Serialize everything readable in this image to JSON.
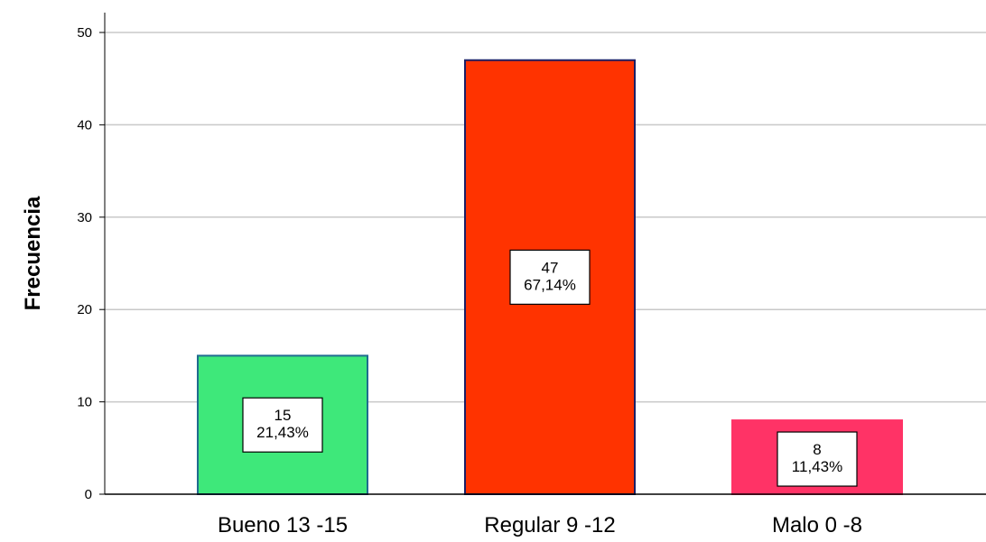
{
  "chart_data": {
    "type": "bar",
    "title": "",
    "xlabel": "",
    "ylabel": "Frecuencia",
    "ylim": [
      0,
      52
    ],
    "yticks": [
      0,
      10,
      20,
      30,
      40,
      50
    ],
    "grid": true,
    "categories": [
      "Bueno 13 -15",
      "Regular 9 -12",
      "Malo 0 -8"
    ],
    "values": [
      15,
      47,
      8
    ],
    "percent_labels": [
      "21,43%",
      "67,14%",
      "11,43%"
    ],
    "colors": [
      "#3ee87a",
      "#ff3300",
      "#ff3366"
    ],
    "border_colors": [
      "#1f6b8f",
      "#1a1f66",
      "#ff3366"
    ]
  }
}
